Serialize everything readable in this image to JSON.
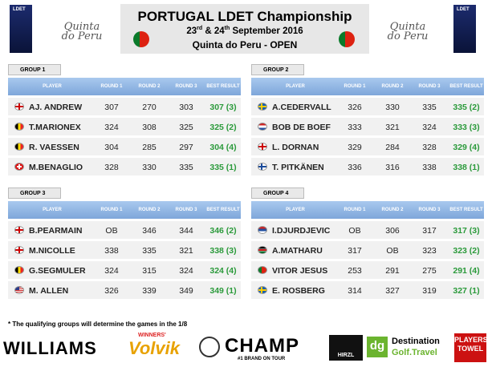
{
  "header": {
    "logo_left": "LDET",
    "brand_left": "Quinta do Peru",
    "title": "PORTUGAL LDET Championship",
    "date": [
      "23",
      "rd",
      "& 24",
      "th",
      "September 2016"
    ],
    "venue": "Quinta do Peru - OPEN",
    "brand_right": "Quinta do Peru",
    "logo_right": "LDET"
  },
  "groups": [
    {
      "name": "GROUP 1",
      "columns": [
        "PLAYER",
        "ROUND 1",
        "ROUND 2",
        "ROUND 3",
        "BEST RESULT"
      ],
      "rows": [
        [
          "AJ. ANDREW",
          307,
          270,
          303,
          "307 (3)"
        ],
        [
          "T.MARIONEX",
          324,
          308,
          325,
          "325 (2)"
        ],
        [
          "R. VAESSEN",
          304,
          285,
          297,
          "304 (4)"
        ],
        [
          "M.BENAGLIO",
          328,
          330,
          335,
          "335 (1)"
        ]
      ]
    },
    {
      "name": "GROUP 2",
      "columns": [
        "PLAYER",
        "ROUND 1",
        "ROUND 2",
        "ROUND 3",
        "BEST RESULT"
      ],
      "rows": [
        [
          "A.CEDERVALL",
          326,
          330,
          335,
          "335 (2)"
        ],
        [
          "BOB DE BOEF",
          333,
          321,
          324,
          "333 (3)"
        ],
        [
          "L. DORNAN",
          329,
          284,
          328,
          "329 (4)"
        ],
        [
          "T. PITKÄNEN",
          336,
          316,
          338,
          "338 (1)"
        ]
      ]
    },
    {
      "name": "GROUP 3",
      "columns": [
        "PLAYER",
        "ROUND 1",
        "ROUND 2",
        "ROUND 3",
        "BEST RESULT"
      ],
      "rows": [
        [
          "B.PEARMAIN",
          "OB",
          346,
          344,
          "346 (2)"
        ],
        [
          "M.NICOLLE",
          338,
          335,
          321,
          "338 (3)"
        ],
        [
          "G.SEGMULER",
          324,
          315,
          324,
          "324 (4)"
        ],
        [
          "M. ALLEN",
          326,
          339,
          349,
          "349 (1)"
        ]
      ]
    },
    {
      "name": "GROUP 4",
      "columns": [
        "PLAYER",
        "ROUND 1",
        "ROUND 2",
        "ROUND 3",
        "BEST RESULT"
      ],
      "rows": [
        [
          "I.DJURDJEVIC",
          "OB",
          306,
          317,
          "317 (3)"
        ],
        [
          "A.MATHARU",
          317,
          "OB",
          323,
          "323 (2)"
        ],
        [
          "VITOR JESUS",
          253,
          291,
          275,
          "291 (4)"
        ],
        [
          "E. ROSBERG",
          314,
          327,
          319,
          "327 (1)"
        ]
      ]
    }
  ],
  "footnote": "* The qualifying groups will determine the games in the 1/8",
  "sponsors": [
    "WILLIAMS",
    "WINNERS'",
    "Volvik",
    "CHAMP",
    "#1 BRAND ON TOUR",
    "HIRZL",
    "dg",
    "Destination",
    "Golf.Travel",
    "PLAYERS TOWEL"
  ]
}
